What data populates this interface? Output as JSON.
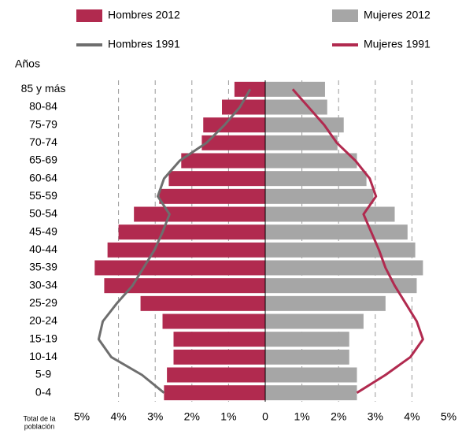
{
  "chart_data": {
    "type": "pyramid",
    "y_label": "Años",
    "x_label_lines": [
      "Total de la",
      "población"
    ],
    "categories": [
      "0-4",
      "5-9",
      "10-14",
      "15-19",
      "20-24",
      "25-29",
      "30-34",
      "35-39",
      "40-44",
      "45-49",
      "50-54",
      "55-59",
      "60-64",
      "65-69",
      "70-74",
      "75-79",
      "80-84",
      "85 y más"
    ],
    "series": [
      {
        "name": "Hombres 2012",
        "kind": "bar",
        "color": "#b12a4f",
        "values": [
          2.76,
          2.68,
          2.5,
          2.5,
          2.8,
          3.4,
          4.39,
          4.65,
          4.3,
          4.0,
          3.58,
          2.89,
          2.63,
          2.29,
          1.73,
          1.69,
          1.18,
          0.84
        ]
      },
      {
        "name": "Mujeres 2012",
        "kind": "bar",
        "color": "#a6a6a6",
        "values": [
          2.5,
          2.5,
          2.29,
          2.29,
          2.68,
          3.28,
          4.13,
          4.3,
          4.09,
          3.88,
          3.53,
          2.95,
          2.76,
          2.5,
          1.97,
          2.14,
          1.69,
          1.63
        ]
      },
      {
        "name": "Hombres 1991",
        "kind": "line",
        "color": "#6e6e6e",
        "values": [
          2.76,
          3.36,
          4.2,
          4.54,
          4.43,
          4.05,
          3.62,
          3.32,
          3.02,
          2.8,
          2.61,
          2.93,
          2.76,
          2.33,
          1.6,
          1.11,
          0.69,
          0.41
        ]
      },
      {
        "name": "Mujeres 1991",
        "kind": "line",
        "color": "#b12a4f",
        "values": [
          2.5,
          3.28,
          3.96,
          4.3,
          4.13,
          3.83,
          3.53,
          3.28,
          3.1,
          2.89,
          2.68,
          3.02,
          2.85,
          2.46,
          1.95,
          1.61,
          1.18,
          0.75
        ]
      }
    ],
    "xlim": [
      -5,
      5
    ],
    "xticks": [
      {
        "value": -5,
        "label": "5%"
      },
      {
        "value": -4,
        "label": "4%"
      },
      {
        "value": -3,
        "label": "3%"
      },
      {
        "value": -2,
        "label": "2%"
      },
      {
        "value": -1,
        "label": "1%"
      },
      0,
      {
        "value": 1,
        "label": "1%"
      },
      {
        "value": 2,
        "label": "2%"
      },
      {
        "value": 3,
        "label": "3%"
      },
      {
        "value": 4,
        "label": "4%"
      },
      {
        "value": 5,
        "label": "5%"
      }
    ],
    "grid": true
  }
}
